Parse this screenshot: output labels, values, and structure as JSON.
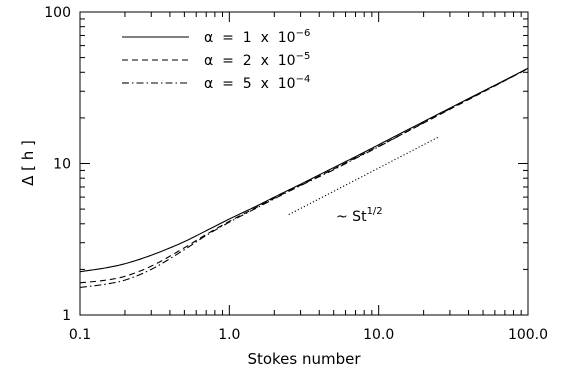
{
  "chart_data": {
    "type": "line",
    "xscale": "log",
    "yscale": "log",
    "xlim": [
      0.1,
      100.0
    ],
    "ylim": [
      1,
      100
    ],
    "xlabel": "Stokes number",
    "ylabel": "Δ [ h ]",
    "x_ticks": [
      "0.1",
      "1.0",
      "10.0",
      "100.0"
    ],
    "y_ticks": [
      "1",
      "10",
      "100"
    ],
    "legend_position": "top-left",
    "series": [
      {
        "name": "α = 1 x 10",
        "exponent": "−6",
        "dash": "solid",
        "x": [
          0.1,
          0.15,
          0.2,
          0.3,
          0.5,
          0.7,
          1.0,
          1.5,
          2,
          3,
          5,
          7,
          10,
          20,
          30,
          50,
          70,
          100
        ],
        "y": [
          1.93,
          2.05,
          2.18,
          2.48,
          3.05,
          3.6,
          4.3,
          5.2,
          6.0,
          7.3,
          9.4,
          11.1,
          13.3,
          18.9,
          23.2,
          30.0,
          35.5,
          42.5
        ]
      },
      {
        "name": "α = 2 x 10",
        "exponent": "−5",
        "dash": "dashed",
        "x": [
          0.1,
          0.15,
          0.2,
          0.3,
          0.5,
          0.7,
          1.0,
          1.5,
          2,
          3,
          5,
          7,
          10,
          20,
          30,
          50,
          70,
          100
        ],
        "y": [
          1.63,
          1.7,
          1.8,
          2.1,
          2.78,
          3.4,
          4.15,
          5.1,
          5.9,
          7.2,
          9.2,
          10.9,
          13.0,
          18.5,
          22.8,
          29.6,
          35.2,
          42.3
        ]
      },
      {
        "name": "α = 5 x 10",
        "exponent": "−4",
        "dash": "dashdot",
        "x": [
          0.1,
          0.15,
          0.2,
          0.3,
          0.5,
          0.7,
          1.0,
          1.5,
          2,
          3,
          5,
          7,
          10,
          20,
          30,
          50,
          70,
          100
        ],
        "y": [
          1.52,
          1.6,
          1.7,
          2.0,
          2.7,
          3.35,
          4.1,
          5.05,
          5.85,
          7.15,
          9.1,
          10.8,
          12.9,
          18.6,
          23.0,
          29.8,
          35.3,
          42.5
        ]
      }
    ],
    "reference": {
      "label": "~ St",
      "label_exponent": "1/2",
      "dash": "dotted",
      "x": [
        2.5,
        25
      ],
      "y": [
        4.6,
        14.9
      ]
    }
  }
}
